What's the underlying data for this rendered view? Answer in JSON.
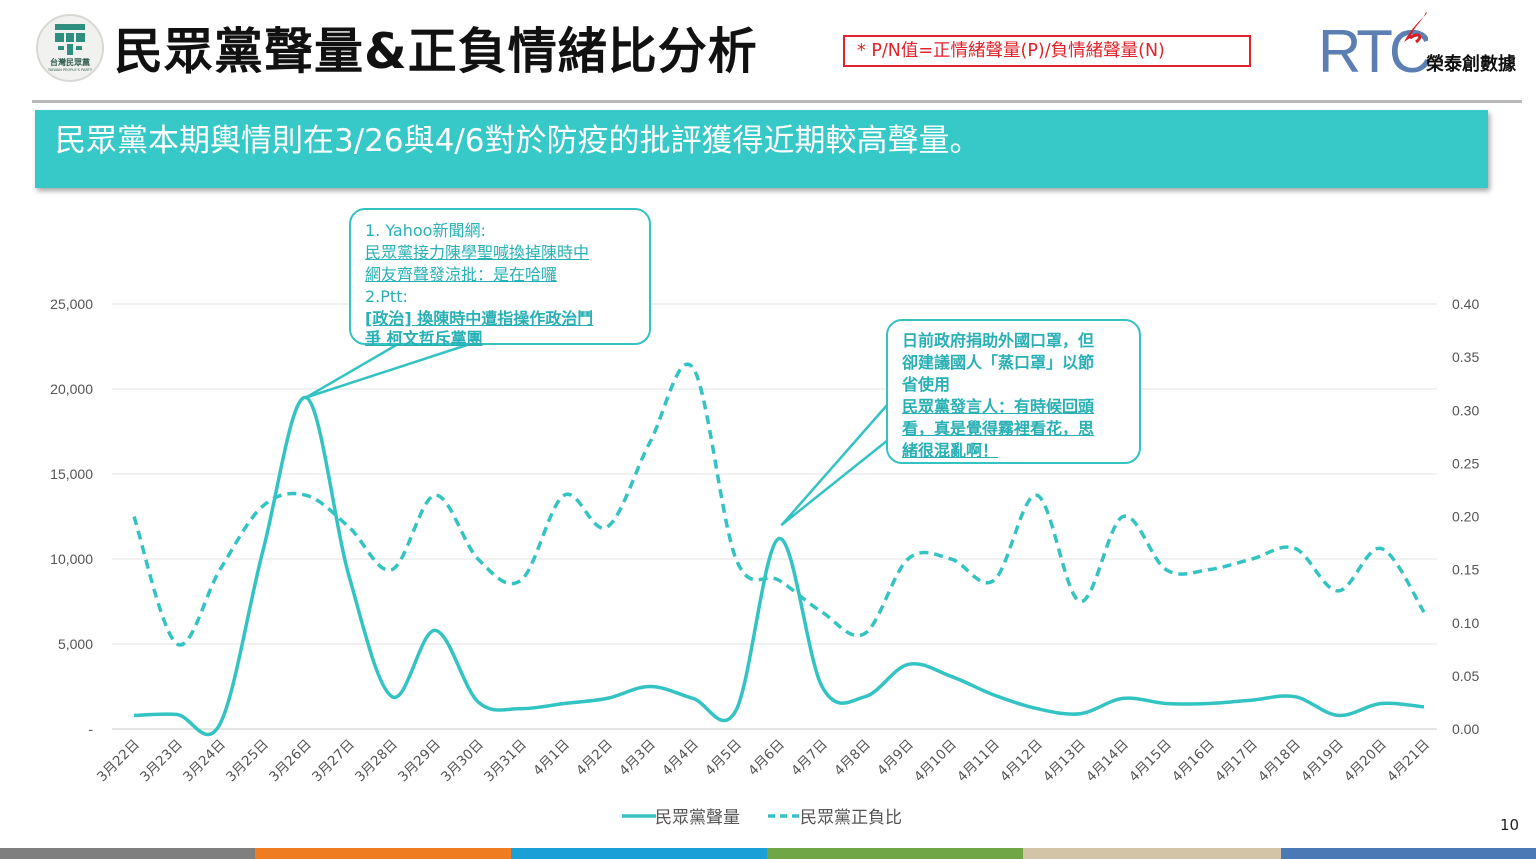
{
  "header": {
    "logo_text": "台灣民眾黨",
    "logo_subtext": "TAIWAN PEOPLE'S PARTY",
    "title": "民眾黨聲量&正負情緒比分析",
    "note": "* P/N值=正情緒聲量(P)/負情緒聲量(N)",
    "brand_letters": "RTC",
    "brand_name": "榮泰創數據"
  },
  "banner": {
    "text": "民眾黨本期輿情則在3/26與4/6對於防疫的批評獲得近期較高聲量。"
  },
  "callouts": [
    {
      "lines": [
        "1.   Yahoo新聞網:",
        "民眾黨接力陳學聖喊換掉陳時中",
        "網友齊聲發涼批：是在哈囉",
        "2.Ptt:",
        " [政治] 換陳時中遭指操作政治鬥",
        "爭   柯文哲斥黨團"
      ]
    },
    {
      "lines": [
        "日前政府捐助外國口罩，但",
        "卻建議國人「蒸口罩」以節",
        "省使用",
        "民眾黨發言人：有時候回頭",
        "看，真是覺得霧裡看花，思",
        "緒很混亂啊！"
      ]
    }
  ],
  "page_number": "10",
  "colors": {
    "teal": "#37c8c8",
    "line": "#33c3c3",
    "note_red": "#e0242b",
    "footer": [
      "#7f7f7f",
      "#f07c21",
      "#1aa0d6",
      "#70a646",
      "#d3c4a8",
      "#4b79b6"
    ]
  },
  "chart_data": {
    "type": "line",
    "categories": [
      "3月22日",
      "3月23日",
      "3月24日",
      "3月25日",
      "3月26日",
      "3月27日",
      "3月28日",
      "3月29日",
      "3月30日",
      "3月31日",
      "4月1日",
      "4月2日",
      "4月3日",
      "4月4日",
      "4月5日",
      "4月6日",
      "4月7日",
      "4月8日",
      "4月9日",
      "4月10日",
      "4月11日",
      "4月12日",
      "4月13日",
      "4月14日",
      "4月15日",
      "4月16日",
      "4月17日",
      "4月18日",
      "4月19日",
      "4月20日",
      "4月21日"
    ],
    "series": [
      {
        "name": "民眾黨聲量",
        "axis": "left",
        "style": "solid",
        "values": [
          800,
          850,
          300,
          10500,
          19500,
          9000,
          1900,
          5800,
          1600,
          1200,
          1500,
          1800,
          2500,
          1800,
          1100,
          11200,
          2500,
          1900,
          3800,
          3100,
          2000,
          1200,
          900,
          1800,
          1500,
          1500,
          1700,
          1900,
          800,
          1500,
          1300
        ]
      },
      {
        "name": "民眾黨正負比",
        "axis": "right",
        "style": "dashed",
        "values": [
          0.2,
          0.08,
          0.15,
          0.21,
          0.22,
          0.19,
          0.15,
          0.22,
          0.16,
          0.14,
          0.22,
          0.19,
          0.27,
          0.34,
          0.16,
          0.14,
          0.11,
          0.09,
          0.16,
          0.16,
          0.14,
          0.22,
          0.12,
          0.2,
          0.15,
          0.15,
          0.16,
          0.17,
          0.13,
          0.17,
          0.11
        ]
      }
    ],
    "left_axis": {
      "min": 0,
      "max": 25000,
      "ticks": [
        "-",
        "5,000",
        "10,000",
        "15,000",
        "20,000",
        "25,000"
      ]
    },
    "right_axis": {
      "min": 0,
      "max": 0.4,
      "ticks": [
        "0.00",
        "0.05",
        "0.10",
        "0.15",
        "0.20",
        "0.25",
        "0.30",
        "0.35",
        "0.40"
      ]
    },
    "grid": true,
    "legend_position": "bottom"
  }
}
